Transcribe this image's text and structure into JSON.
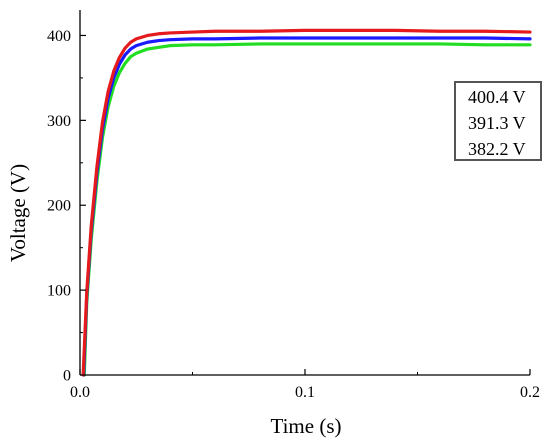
{
  "chart_data": {
    "type": "line",
    "title": "",
    "xlabel": "Time (s)",
    "ylabel": "Voltage (V)",
    "xlim": [
      0.0,
      0.2
    ],
    "ylim": [
      0,
      430
    ],
    "xticks": [
      0.0,
      0.1,
      0.2
    ],
    "xtick_labels": [
      "0.0",
      "0.1",
      "0.2"
    ],
    "yticks": [
      0,
      100,
      200,
      300,
      400
    ],
    "ytick_labels": [
      "0",
      "100",
      "200",
      "300",
      "400"
    ],
    "grid": false,
    "legend_position": "right",
    "legend": [
      "400.4 V",
      "391.3 V",
      "382.2 V"
    ],
    "series": [
      {
        "color": "#e41a1c",
        "x": [
          0.0014,
          0.003,
          0.005,
          0.0075,
          0.01,
          0.0125,
          0.015,
          0.0175,
          0.02,
          0.0225,
          0.025,
          0.03,
          0.035,
          0.04,
          0.05,
          0.06,
          0.08,
          0.1,
          0.12,
          0.14,
          0.16,
          0.18,
          0.2
        ],
        "y": [
          0,
          98,
          176,
          245,
          298,
          334,
          358,
          374,
          385,
          392,
          396,
          400,
          402,
          403,
          404,
          405,
          405,
          406,
          406,
          406,
          405,
          405,
          404
        ]
      },
      {
        "color": "#1a1aff",
        "x": [
          0.0016,
          0.003,
          0.005,
          0.0075,
          0.01,
          0.0125,
          0.015,
          0.0175,
          0.02,
          0.0225,
          0.025,
          0.03,
          0.035,
          0.04,
          0.05,
          0.06,
          0.08,
          0.1,
          0.12,
          0.14,
          0.16,
          0.18,
          0.2
        ],
        "y": [
          0,
          93,
          170,
          238,
          290,
          326,
          350,
          366,
          377,
          384,
          388,
          392,
          394,
          395,
          396,
          396,
          397,
          397,
          397,
          397,
          397,
          397,
          396
        ]
      },
      {
        "color": "#22dd22",
        "x": [
          0.0019,
          0.003,
          0.005,
          0.0075,
          0.01,
          0.0125,
          0.015,
          0.0175,
          0.02,
          0.0225,
          0.025,
          0.03,
          0.035,
          0.04,
          0.05,
          0.06,
          0.08,
          0.1,
          0.12,
          0.14,
          0.16,
          0.18,
          0.2
        ],
        "y": [
          0,
          85,
          160,
          228,
          280,
          316,
          340,
          356,
          367,
          375,
          379,
          384,
          386,
          388,
          389,
          389,
          390,
          390,
          390,
          390,
          390,
          389,
          389
        ]
      }
    ]
  }
}
